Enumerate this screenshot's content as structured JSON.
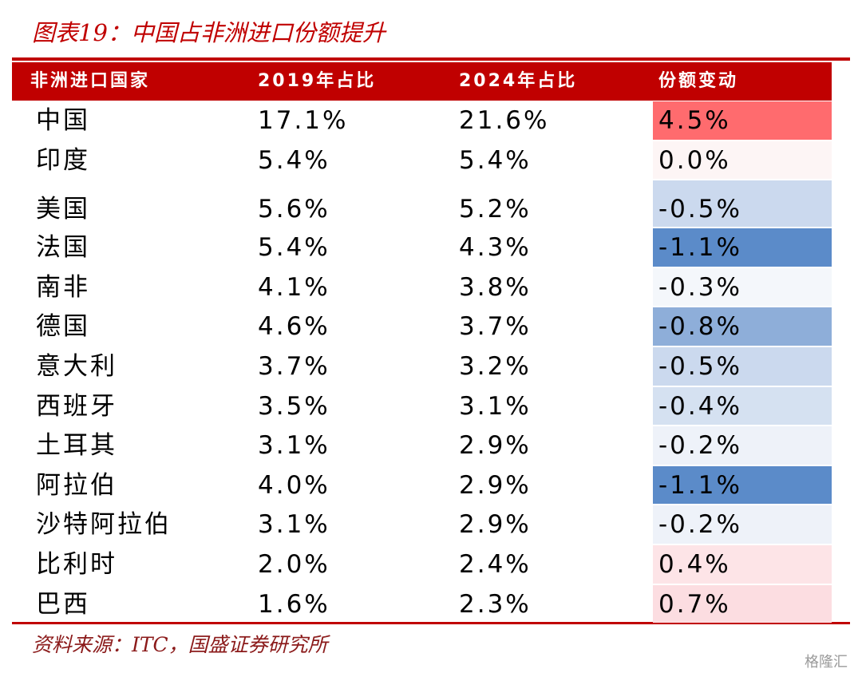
{
  "header": {
    "title": "图表19：中国占非洲进口份额提升"
  },
  "table": {
    "columns": [
      "非洲进口国家",
      "2019年占比",
      "2024年占比",
      "份额变动"
    ],
    "rows": [
      [
        "中国",
        "17.1%",
        "21.6%",
        "4.5%"
      ],
      [
        "印度",
        "5.4%",
        "5.4%",
        "0.0%"
      ],
      [
        "美国",
        "5.6%",
        "5.2%",
        "-0.5%"
      ],
      [
        "法国",
        "5.4%",
        "4.3%",
        "-1.1%"
      ],
      [
        "南非",
        "4.1%",
        "3.8%",
        "-0.3%"
      ],
      [
        "德国",
        "4.6%",
        "3.7%",
        "-0.8%"
      ],
      [
        "意大利",
        "3.7%",
        "3.2%",
        "-0.5%"
      ],
      [
        "西班牙",
        "3.5%",
        "3.1%",
        "-0.4%"
      ],
      [
        "土耳其",
        "3.1%",
        "2.9%",
        "-0.2%"
      ],
      [
        "阿拉伯",
        "4.0%",
        "2.9%",
        "-1.1%"
      ],
      [
        "沙特阿拉伯",
        "3.1%",
        "2.9%",
        "-0.2%"
      ],
      [
        "比利时",
        "2.0%",
        "2.4%",
        "0.4%"
      ],
      [
        "巴西",
        "1.6%",
        "2.3%",
        "0.7%"
      ]
    ],
    "change_colors": [
      "#ff6b6e",
      "#fdf5f5",
      "#cbd9ee",
      "#5b8bc9",
      "#f4f7fb",
      "#8eaed9",
      "#cbd9ee",
      "#d5e1f1",
      "#eef2f9",
      "#5b8bc9",
      "#eef2f9",
      "#fde4e7",
      "#fcdde1"
    ]
  },
  "footer": {
    "source": "资料来源：ITC，国盛证券研究所",
    "watermark": "格隆汇"
  }
}
